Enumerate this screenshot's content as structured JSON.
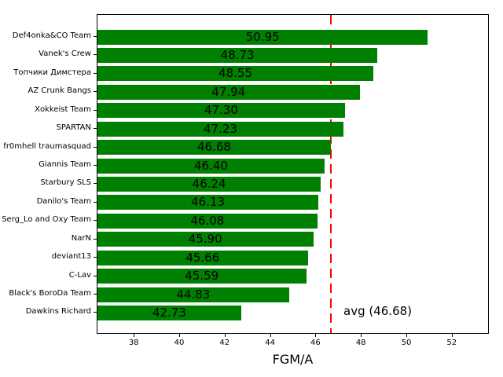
{
  "figure": {
    "background": "#ffffff"
  },
  "chart_data": {
    "type": "bar",
    "orientation": "horizontal",
    "title": "",
    "xlabel": "FGM/A",
    "ylabel": "",
    "categories": [
      "Def4onka&CO Team",
      "Vanek's Crew",
      "Топчики Димстера",
      "AZ Crunk Bangs",
      "Xokkeist Team",
      "SPARTAN",
      "fr0mhell traumasquad",
      "Giannis Team",
      "Starbury SLS",
      "Danilo's Team",
      "Serg_Lo and Oxy Team",
      "NarN",
      "deviant13",
      "C-Lav",
      "Black's BoroDa Team",
      "Dawkins Richard"
    ],
    "values": [
      50.95,
      48.73,
      48.55,
      47.94,
      47.3,
      47.23,
      46.68,
      46.4,
      46.24,
      46.13,
      46.08,
      45.9,
      45.66,
      45.59,
      44.83,
      42.73
    ],
    "value_labels": [
      "50.95",
      "48.73",
      "48.55",
      "47.94",
      "47.30",
      "47.23",
      "46.68",
      "46.40",
      "46.24",
      "46.13",
      "46.08",
      "45.90",
      "45.66",
      "45.59",
      "44.83",
      "42.73"
    ],
    "xlim": [
      36.4,
      53.6
    ],
    "xticks": [
      38,
      40,
      42,
      44,
      46,
      48,
      50,
      52
    ],
    "grid": false,
    "legend": false,
    "bar_color": "#008000",
    "value_label_color": "#000000",
    "avg_line": {
      "value": 46.68,
      "label": "avg (46.68)",
      "color": "#ff0000",
      "style": "dashed"
    }
  }
}
